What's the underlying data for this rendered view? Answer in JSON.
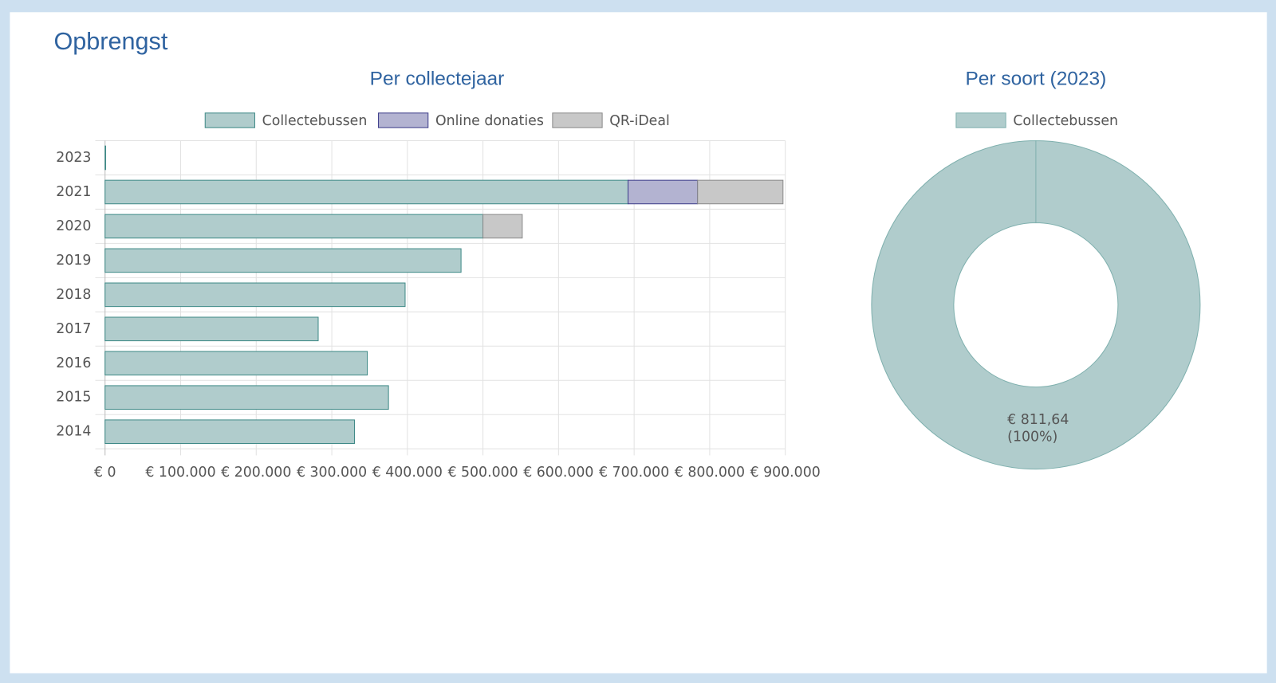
{
  "header": {
    "title": "Opbrengst"
  },
  "chart_data": [
    {
      "type": "bar",
      "orientation": "horizontal",
      "stacked": true,
      "title": "Per collectejaar",
      "categories": [
        "2023",
        "2021",
        "2020",
        "2019",
        "2018",
        "2017",
        "2016",
        "2015",
        "2014"
      ],
      "series": [
        {
          "name": "Collectebussen",
          "color": "#b0cccc",
          "stroke": "#3f8a87",
          "values": [
            811.64,
            692000,
            500000,
            471000,
            397000,
            282000,
            347000,
            375000,
            330000
          ]
        },
        {
          "name": "Online donaties",
          "color": "#b3b3d1",
          "stroke": "#3d3d8a",
          "values": [
            null,
            92000,
            null,
            null,
            null,
            null,
            null,
            null,
            null
          ]
        },
        {
          "name": "QR-iDeal",
          "color": "#c8c8c8",
          "stroke": "#8a8a8a",
          "values": [
            null,
            113000,
            52000,
            null,
            null,
            null,
            null,
            null,
            null
          ]
        }
      ],
      "xlim": [
        0,
        900000
      ],
      "xticks": [
        {
          "value": 0,
          "label": "€ 0"
        },
        {
          "value": 100000,
          "label": "€ 100.000"
        },
        {
          "value": 200000,
          "label": "€ 200.000"
        },
        {
          "value": 300000,
          "label": "€ 300.000"
        },
        {
          "value": 400000,
          "label": "€ 400.000"
        },
        {
          "value": 500000,
          "label": "€ 500.000"
        },
        {
          "value": 600000,
          "label": "€ 600.000"
        },
        {
          "value": 700000,
          "label": "€ 700.000"
        },
        {
          "value": 800000,
          "label": "€ 800.000"
        },
        {
          "value": 900000,
          "label": "€ 900.000"
        }
      ],
      "grid": true,
      "legend": "top"
    },
    {
      "type": "pie",
      "donut": true,
      "title": "Per soort (2023)",
      "categories": [
        "Collectebussen"
      ],
      "values": [
        811.64
      ],
      "value_labels": [
        "€ 811,64"
      ],
      "percents": [
        100
      ],
      "percent_labels": [
        "(100%)"
      ],
      "colors": [
        "#b0cccc"
      ],
      "stroke": "#7fb0ae",
      "legend": "top"
    }
  ]
}
